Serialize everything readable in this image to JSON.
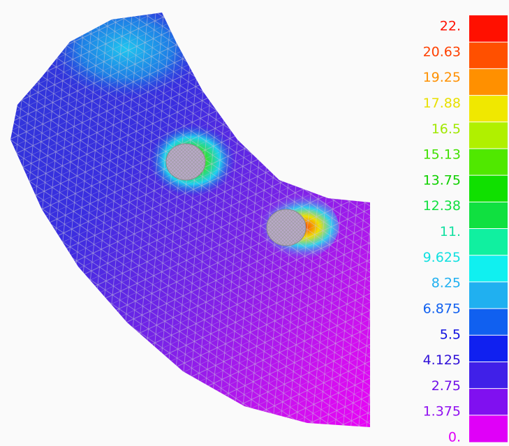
{
  "legend": {
    "labels": [
      "22.",
      "20.63",
      "19.25",
      "17.88",
      "16.5",
      "15.13",
      "13.75",
      "12.38",
      "11.",
      "9.625",
      "8.25",
      "6.875",
      "5.5",
      "4.125",
      "2.75",
      "1.375",
      "0."
    ]
  }
}
